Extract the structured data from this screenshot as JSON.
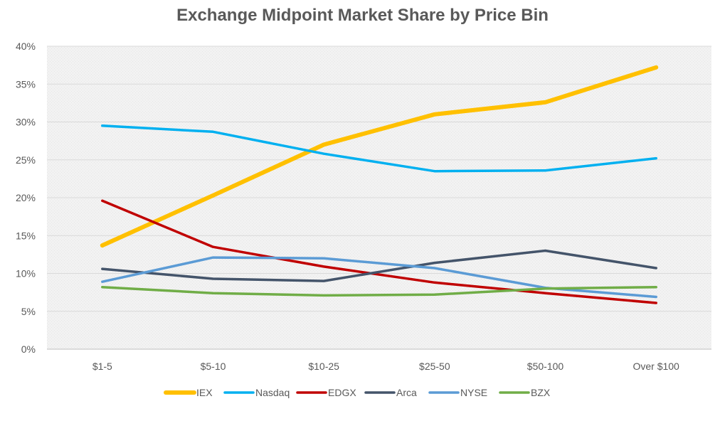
{
  "chart_data": {
    "type": "line",
    "title": "Exchange Midpoint Market Share by Price Bin",
    "xlabel": "",
    "ylabel": "",
    "categories": [
      "$1-5",
      "$5-10",
      "$10-25",
      "$25-50",
      "$50-100",
      "Over $100"
    ],
    "ylim": [
      0,
      40
    ],
    "y_ticks": [
      0,
      5,
      10,
      15,
      20,
      25,
      30,
      35,
      40
    ],
    "y_tick_labels": [
      "0%",
      "5%",
      "10%",
      "15%",
      "20%",
      "25%",
      "30%",
      "35%",
      "40%"
    ],
    "grid": true,
    "legend_position": "bottom",
    "series": [
      {
        "name": "IEX",
        "color": "#FFC000",
        "values": [
          13.7,
          20.3,
          27.0,
          31.0,
          32.6,
          37.2
        ]
      },
      {
        "name": "Nasdaq",
        "color": "#00B0F0",
        "values": [
          29.5,
          28.7,
          25.8,
          23.5,
          23.6,
          25.2
        ]
      },
      {
        "name": "EDGX",
        "color": "#C00000",
        "values": [
          19.6,
          13.5,
          10.9,
          8.8,
          7.4,
          6.1
        ]
      },
      {
        "name": "Arca",
        "color": "#44546A",
        "values": [
          10.6,
          9.3,
          9.0,
          11.4,
          13.0,
          10.7
        ]
      },
      {
        "name": "NYSE",
        "color": "#5B9BD5",
        "values": [
          8.9,
          12.1,
          12.0,
          10.7,
          8.1,
          6.9
        ]
      },
      {
        "name": "BZX",
        "color": "#70AD47",
        "values": [
          8.2,
          7.4,
          7.1,
          7.2,
          8.0,
          8.2
        ]
      }
    ]
  }
}
